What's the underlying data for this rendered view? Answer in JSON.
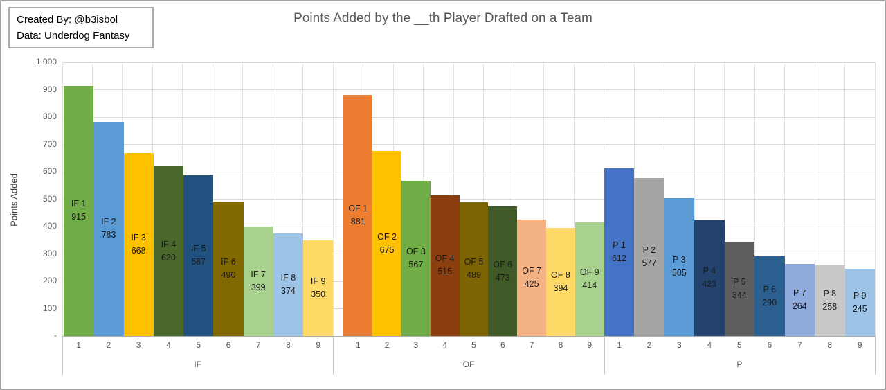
{
  "annotation": {
    "line1": "Created By: @b3isbol",
    "line2": "Data: Underdog Fantasy"
  },
  "title": "Points Added by the __th Player Drafted on a Team",
  "chart_data": {
    "type": "bar",
    "title": "Points Added by the __th Player Drafted on a Team",
    "ylabel": "Points Added",
    "xlabel": "",
    "ylim": [
      0,
      1000
    ],
    "ytick_interval": 100,
    "ytick_labels": [
      "-",
      "100",
      "200",
      "300",
      "400",
      "500",
      "600",
      "700",
      "800",
      "900",
      "1,000"
    ],
    "grid": true,
    "legend": "none",
    "bar_label_format": "category name and value stacked inside bar, centered",
    "groups": [
      {
        "label": "IF",
        "categories": [
          "1",
          "2",
          "3",
          "4",
          "5",
          "6",
          "7",
          "8",
          "9"
        ],
        "bars": [
          {
            "name": "IF 1",
            "value": 915,
            "color": "#70AD47"
          },
          {
            "name": "IF 2",
            "value": 783,
            "color": "#5B9BD5"
          },
          {
            "name": "IF 3",
            "value": 668,
            "color": "#FFC000"
          },
          {
            "name": "IF 4",
            "value": 620,
            "color": "#4A682B"
          },
          {
            "name": "IF 5",
            "value": 587,
            "color": "#21517E"
          },
          {
            "name": "IF 6",
            "value": 490,
            "color": "#826800"
          },
          {
            "name": "IF 7",
            "value": 399,
            "color": "#A9D18E"
          },
          {
            "name": "IF 8",
            "value": 374,
            "color": "#9DC3E6"
          },
          {
            "name": "IF 9",
            "value": 350,
            "color": "#FFD966"
          }
        ]
      },
      {
        "label": "OF",
        "categories": [
          "1",
          "2",
          "3",
          "4",
          "5",
          "6",
          "7",
          "8",
          "9"
        ],
        "bars": [
          {
            "name": "OF 1",
            "value": 881,
            "color": "#ED7D31"
          },
          {
            "name": "OF 2",
            "value": 675,
            "color": "#FFC000"
          },
          {
            "name": "OF 3",
            "value": 567,
            "color": "#70AD47"
          },
          {
            "name": "OF 4",
            "value": 515,
            "color": "#8B3E0F"
          },
          {
            "name": "OF 5",
            "value": 489,
            "color": "#7D6505"
          },
          {
            "name": "OF 6",
            "value": 473,
            "color": "#3F5A26"
          },
          {
            "name": "OF 7",
            "value": 425,
            "color": "#F4B183"
          },
          {
            "name": "OF 8",
            "value": 394,
            "color": "#FFD966"
          },
          {
            "name": "OF 9",
            "value": 414,
            "color": "#A9D18E"
          }
        ]
      },
      {
        "label": "P",
        "categories": [
          "1",
          "2",
          "3",
          "4",
          "5",
          "6",
          "7",
          "8",
          "9"
        ],
        "bars": [
          {
            "name": "P 1",
            "value": 612,
            "color": "#4472C4"
          },
          {
            "name": "P 2",
            "value": 577,
            "color": "#A5A5A5"
          },
          {
            "name": "P 3",
            "value": 505,
            "color": "#5B9BD5"
          },
          {
            "name": "P 4",
            "value": 423,
            "color": "#24426E"
          },
          {
            "name": "P 5",
            "value": 344,
            "color": "#5E5E5E"
          },
          {
            "name": "P 6",
            "value": 290,
            "color": "#2A5F8F"
          },
          {
            "name": "P 7",
            "value": 264,
            "color": "#8FAADC"
          },
          {
            "name": "P 8",
            "value": 258,
            "color": "#C9C9C9"
          },
          {
            "name": "P 9",
            "value": 245,
            "color": "#9DC3E6"
          }
        ]
      }
    ],
    "style": {
      "gridline_color": "#D9D9D9",
      "axis_line_color": "#ADADAD",
      "tick_label_color": "#595959",
      "title_color": "#595959",
      "bar_label_color": "#1A1A1A",
      "background": "#FFFFFF"
    }
  }
}
